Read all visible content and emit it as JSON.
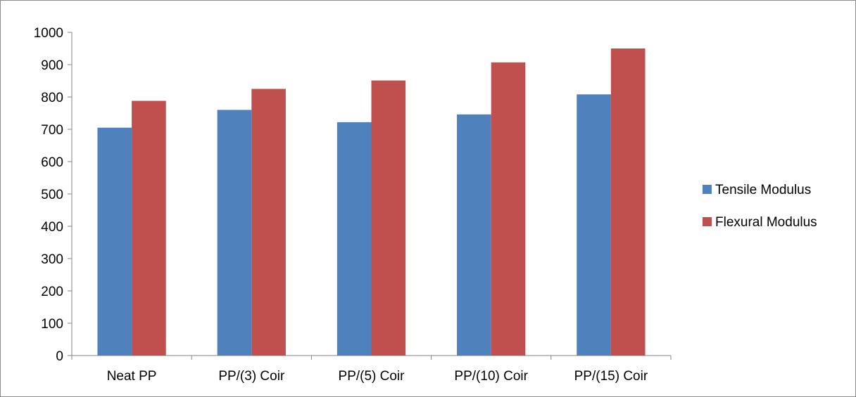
{
  "chart_data": {
    "type": "bar",
    "title": "",
    "xlabel": "",
    "ylabel": "",
    "categories": [
      "Neat PP",
      "PP/(3) Coir",
      "PP/(5) Coir",
      "PP/(10) Coir",
      "PP/(15) Coir"
    ],
    "series": [
      {
        "name": "Tensile Modulus",
        "color": "#4f81bd",
        "values": [
          705,
          760,
          722,
          746,
          808
        ]
      },
      {
        "name": "Flexural Modulus",
        "color": "#c0504d",
        "values": [
          788,
          825,
          851,
          907,
          950
        ]
      }
    ],
    "ylim": [
      0,
      1000
    ],
    "yticks": [
      0,
      100,
      200,
      300,
      400,
      500,
      600,
      700,
      800,
      900,
      1000
    ],
    "grid": false,
    "legend_position": "right"
  }
}
